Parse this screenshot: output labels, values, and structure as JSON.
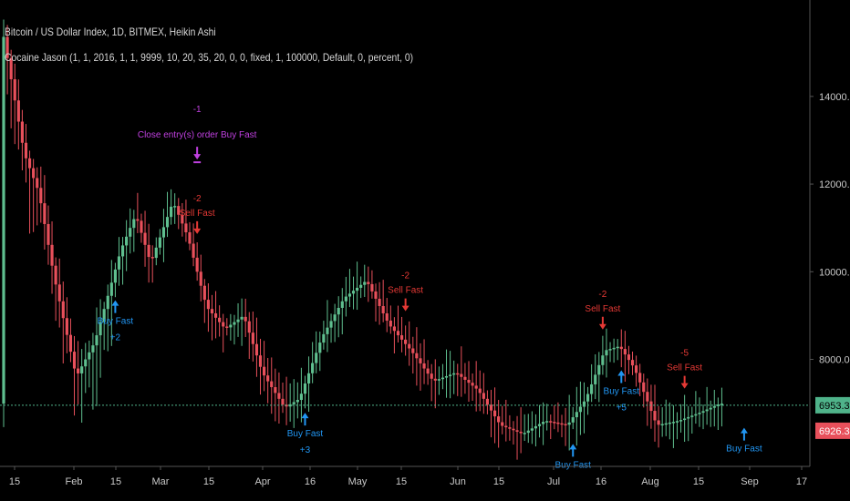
{
  "header": {
    "title": "Bitcoin / US Dollar Index, 1D, BITMEX, Heikin Ashi",
    "study": "Cocaine Jason (1, 1, 2016, 1, 1, 9999, 10, 20, 35, 20, 0, 0, fixed, 1, 100000, Default, 0, percent, 0)"
  },
  "colors": {
    "background": "#000000",
    "up": "#5fbf8f",
    "down": "#e8505b",
    "buy": "#2196f3",
    "sell": "#e53935",
    "close": "#c040e0",
    "price_line": "#4fb38a",
    "axis": "#555555"
  },
  "chart_data": {
    "type": "candlestick",
    "style": "Heikin Ashi",
    "y_ticks": [
      "14000.00",
      "12000.00",
      "10000.00",
      "8000.00"
    ],
    "x_ticks": [
      "15",
      "Feb",
      "15",
      "Mar",
      "15",
      "Apr",
      "16",
      "May",
      "15",
      "Jun",
      "15",
      "Jul",
      "16",
      "Aug",
      "15",
      "Sep",
      "17"
    ],
    "ylim": [
      5600,
      16200
    ],
    "current_price": "6953.30",
    "prev_price": "6926.34",
    "ohlc_anchors": [
      {
        "day": 0,
        "price": 15600
      },
      {
        "day": 6,
        "price": 12700
      },
      {
        "day": 10,
        "price": 11800
      },
      {
        "day": 14,
        "price": 9900
      },
      {
        "day": 20,
        "price": 7600
      },
      {
        "day": 25,
        "price": 8400
      },
      {
        "day": 32,
        "price": 10500
      },
      {
        "day": 36,
        "price": 11300
      },
      {
        "day": 40,
        "price": 10200
      },
      {
        "day": 46,
        "price": 11600
      },
      {
        "day": 50,
        "price": 10800
      },
      {
        "day": 55,
        "price": 9200
      },
      {
        "day": 60,
        "price": 8700
      },
      {
        "day": 65,
        "price": 9000
      },
      {
        "day": 70,
        "price": 7700
      },
      {
        "day": 76,
        "price": 6900
      },
      {
        "day": 80,
        "price": 7100
      },
      {
        "day": 86,
        "price": 8500
      },
      {
        "day": 92,
        "price": 9400
      },
      {
        "day": 98,
        "price": 9800
      },
      {
        "day": 104,
        "price": 8800
      },
      {
        "day": 110,
        "price": 8200
      },
      {
        "day": 116,
        "price": 7500
      },
      {
        "day": 122,
        "price": 7700
      },
      {
        "day": 128,
        "price": 7300
      },
      {
        "day": 134,
        "price": 6500
      },
      {
        "day": 140,
        "price": 6300
      },
      {
        "day": 146,
        "price": 6600
      },
      {
        "day": 152,
        "price": 6500
      },
      {
        "day": 157,
        "price": 7100
      },
      {
        "day": 162,
        "price": 8200
      },
      {
        "day": 166,
        "price": 8300
      },
      {
        "day": 170,
        "price": 7800
      },
      {
        "day": 176,
        "price": 6500
      },
      {
        "day": 182,
        "price": 6600
      },
      {
        "day": 188,
        "price": 6800
      },
      {
        "day": 193,
        "price": 6990
      }
    ],
    "signals": [
      {
        "type": "buy",
        "day": 30,
        "label": "Buy Fast",
        "qty": "+2"
      },
      {
        "type": "close",
        "day": 52,
        "label": "Close entry(s) order Buy Fast",
        "qty": "-1"
      },
      {
        "type": "sell",
        "day": 52,
        "label": "Sell Fast",
        "qty": "-2"
      },
      {
        "type": "buy",
        "day": 81,
        "label": "Buy Fast",
        "qty": "+3"
      },
      {
        "type": "sell",
        "day": 108,
        "label": "Sell Fast",
        "qty": "-2"
      },
      {
        "type": "buy",
        "day": 153,
        "label": "Buy Fast",
        "qty": ""
      },
      {
        "type": "sell",
        "day": 161,
        "label": "Sell Fast",
        "qty": "-2"
      },
      {
        "type": "buy",
        "day": 166,
        "label": "Buy Fast",
        "qty": "+5"
      },
      {
        "type": "sell",
        "day": 183,
        "label": "Sell Fast",
        "qty": "-5"
      },
      {
        "type": "buy",
        "day": 199,
        "label": "Buy Fast",
        "qty": ""
      }
    ]
  }
}
